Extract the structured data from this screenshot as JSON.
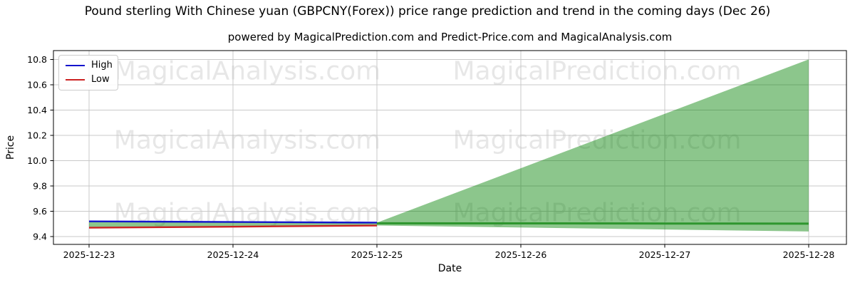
{
  "header": {
    "title": "Pound sterling With Chinese yuan (GBPCNY(Forex)) price range prediction and trend in the coming days (Dec 26)",
    "subtitle": "powered by MagicalPrediction.com and Predict-Price.com and MagicalAnalysis.com"
  },
  "watermarks": {
    "left": "MagicalAnalysis.com",
    "right": "MagicalPrediction.com"
  },
  "legend": {
    "items": [
      {
        "label": "High",
        "color": "#1414cc"
      },
      {
        "label": "Low",
        "color": "#cc2222"
      }
    ]
  },
  "colors": {
    "high_line": "#1414cc",
    "low_line": "#cc2222",
    "trend_line": "#2e962e",
    "band_fill": "#008000",
    "grid": "#c9c9c9",
    "spine": "#000000"
  },
  "chart_data": {
    "type": "line",
    "title": "Pound sterling With Chinese yuan (GBPCNY(Forex)) price range prediction and trend in the coming days (Dec 26)",
    "subtitle": "powered by MagicalPrediction.com and Predict-Price.com and MagicalAnalysis.com",
    "xlabel": "Date",
    "ylabel": "Price",
    "x_tick_labels": [
      "2025-12-23",
      "2025-12-24",
      "2025-12-25",
      "2025-12-26",
      "2025-12-27",
      "2025-12-28"
    ],
    "y_tick_labels": [
      "9.4",
      "9.6",
      "9.8",
      "10.0",
      "10.2",
      "10.4",
      "10.6",
      "10.8"
    ],
    "y_tick_values": [
      9.4,
      9.6,
      9.8,
      10.0,
      10.2,
      10.4,
      10.6,
      10.8
    ],
    "ylim": [
      9.338,
      10.87
    ],
    "grid": true,
    "legend_position": "upper left",
    "series": [
      {
        "name": "High",
        "color": "#1414cc",
        "x_idx": [
          0,
          1,
          2
        ],
        "values": [
          9.52,
          9.515,
          9.51
        ],
        "width": 2.4
      },
      {
        "name": "Low",
        "color": "#cc2222",
        "x_idx": [
          0,
          1,
          2
        ],
        "values": [
          9.47,
          9.478,
          9.487
        ],
        "width": 2.4
      },
      {
        "name": "Trend",
        "color": "#2e962e",
        "x_idx": [
          2,
          3,
          4,
          5
        ],
        "values": [
          9.505,
          9.504,
          9.503,
          9.502
        ],
        "width": 3
      }
    ],
    "band": {
      "name": "prediction-range",
      "fill_color": "#008000",
      "fill_opacity": 0.45,
      "x_idx": [
        0,
        1,
        2,
        5
      ],
      "upper": [
        9.52,
        9.515,
        9.51,
        10.8
      ],
      "lower": [
        9.47,
        9.478,
        9.487,
        9.44
      ]
    }
  }
}
